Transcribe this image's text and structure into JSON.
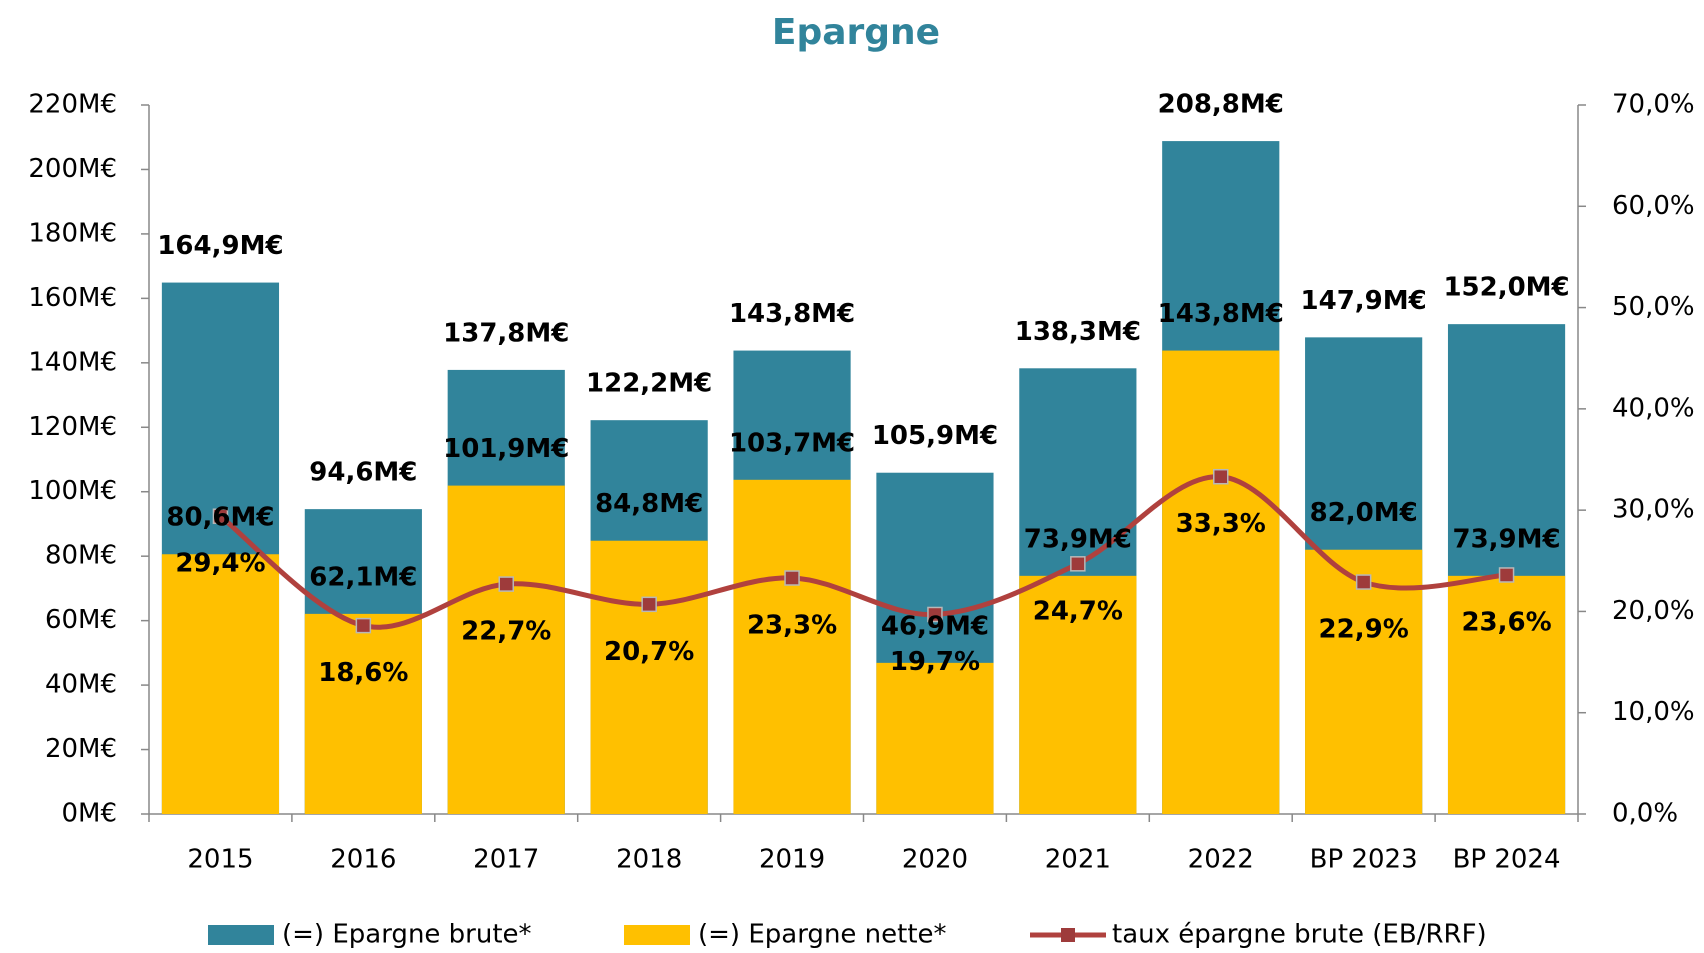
{
  "chart_data": {
    "type": "bar",
    "title": "Epargne",
    "categories": [
      "2015",
      "2016",
      "2017",
      "2018",
      "2019",
      "2020",
      "2021",
      "2022",
      "BP 2023",
      "BP 2024"
    ],
    "series": [
      {
        "name": "(=) Epargne brute*",
        "type": "bar",
        "color": "#31849b",
        "label_color": "#1f6fc0",
        "values": [
          164.9,
          94.6,
          137.8,
          122.2,
          143.8,
          105.9,
          138.3,
          208.8,
          147.9,
          152.0
        ],
        "value_labels": [
          "164,9M€",
          "94,6M€",
          "137,8M€",
          "122,2M€",
          "143,8M€",
          "105,9M€",
          "138,3M€",
          "208,8M€",
          "147,9M€",
          "152,0M€"
        ]
      },
      {
        "name": "(=) Epargne nette*",
        "type": "bar",
        "color": "#ffc000",
        "label_color": "#e8a800",
        "values": [
          80.6,
          62.1,
          101.9,
          84.8,
          103.7,
          46.9,
          73.9,
          143.8,
          82.0,
          73.9
        ],
        "value_labels": [
          "80,6M€",
          "62,1M€",
          "101,9M€",
          "84,8M€",
          "103,7M€",
          "46,9M€",
          "73,9M€",
          "143,8M€",
          "82,0M€",
          "73,9M€"
        ]
      },
      {
        "name": "taux épargne brute (EB/RRF)",
        "type": "line",
        "axis": "y2",
        "color": "#b0413e",
        "label_color": "#ff0000",
        "values": [
          29.4,
          18.6,
          22.7,
          20.7,
          23.3,
          19.7,
          24.7,
          33.3,
          22.9,
          23.6
        ],
        "value_labels": [
          "29,4%",
          "18,6%",
          "22,7%",
          "20,7%",
          "23,3%",
          "19,7%",
          "24,7%",
          "33,3%",
          "22,9%",
          "23,6%"
        ]
      }
    ],
    "ylim": [
      0,
      220
    ],
    "yticks": [
      {
        "value": 0,
        "label": "0M€"
      },
      {
        "value": 20,
        "label": "20M€"
      },
      {
        "value": 40,
        "label": "40M€"
      },
      {
        "value": 60,
        "label": "60M€"
      },
      {
        "value": 80,
        "label": "80M€"
      },
      {
        "value": 100,
        "label": "100M€"
      },
      {
        "value": 120,
        "label": "120M€"
      },
      {
        "value": 140,
        "label": "140M€"
      },
      {
        "value": 160,
        "label": "160M€"
      },
      {
        "value": 180,
        "label": "180M€"
      },
      {
        "value": 200,
        "label": "200M€"
      },
      {
        "value": 220,
        "label": "220M€"
      }
    ],
    "y2lim": [
      0,
      70
    ],
    "y2ticks": [
      {
        "value": 0,
        "label": "0,0%"
      },
      {
        "value": 10,
        "label": "10,0%"
      },
      {
        "value": 20,
        "label": "20,0%"
      },
      {
        "value": 30,
        "label": "30,0%"
      },
      {
        "value": 40,
        "label": "40,0%"
      },
      {
        "value": 50,
        "label": "50,0%"
      },
      {
        "value": 60,
        "label": "60,0%"
      },
      {
        "value": 70,
        "label": "70,0%"
      }
    ],
    "grid": false,
    "legend": "bottom"
  }
}
